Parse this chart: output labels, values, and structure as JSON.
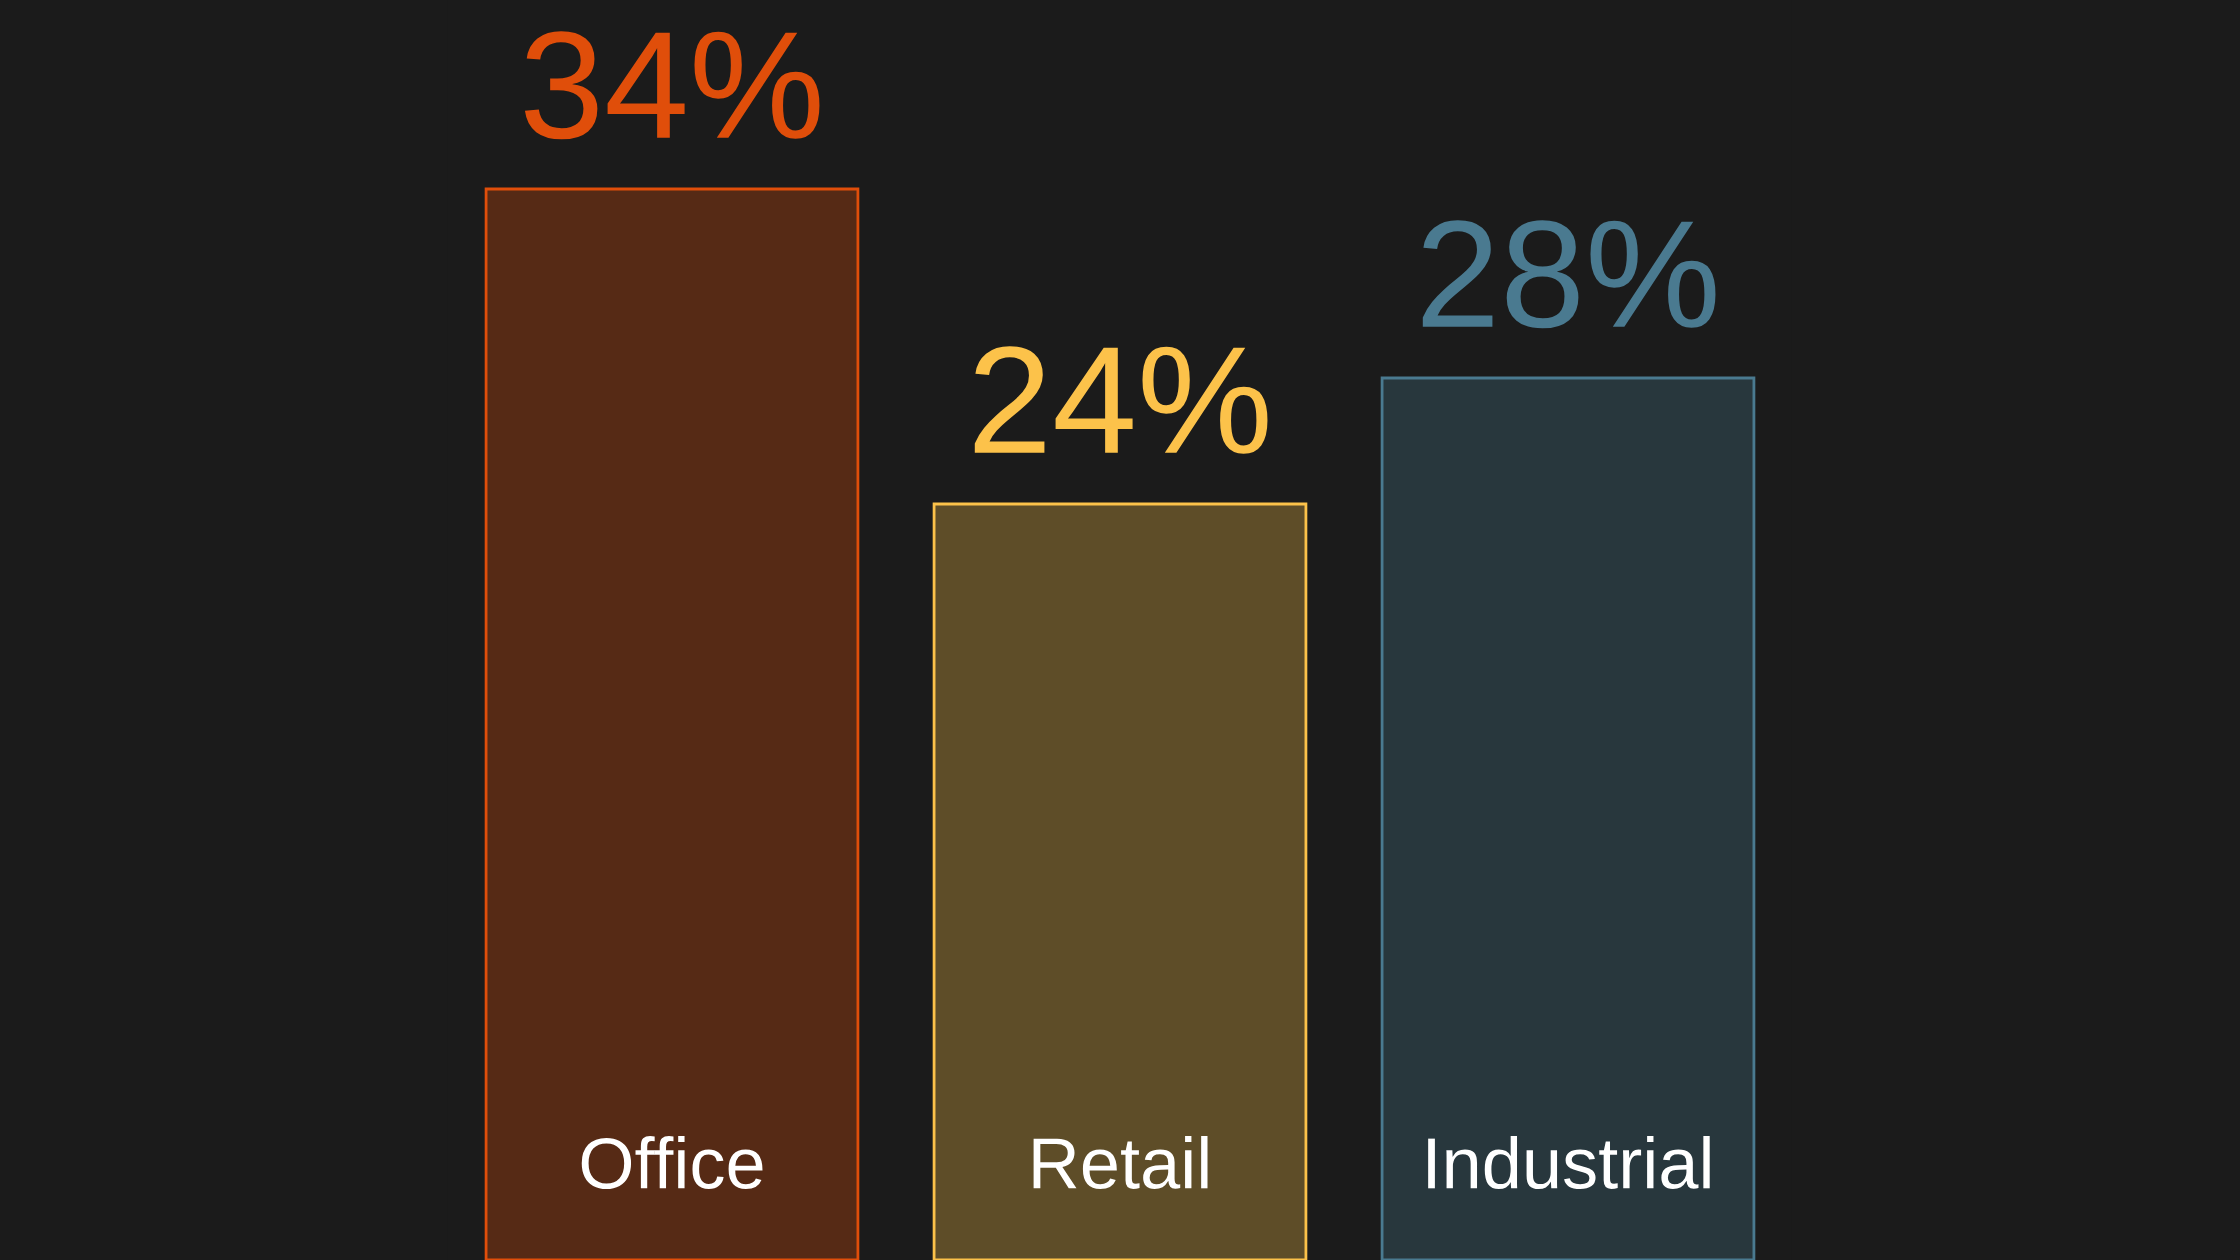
{
  "chart_data": {
    "type": "bar",
    "categories": [
      "Office",
      "Retail",
      "Industrial"
    ],
    "values": [
      34,
      24,
      28
    ],
    "value_labels": [
      "34%",
      "24%",
      "28%"
    ],
    "colors": [
      "#e04e0a",
      "#fcc24a",
      "#4a7a90"
    ],
    "ylim": [
      0,
      40
    ]
  }
}
